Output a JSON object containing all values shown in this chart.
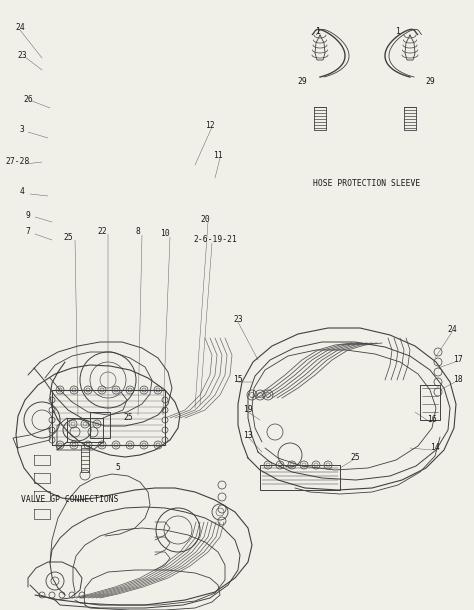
{
  "bg_color": "#f0efe8",
  "line_color": "#404040",
  "text_color": "#1a1a1a",
  "labels": {
    "hose_protection": "HOSE PROTECTION SLEEVE",
    "valve_gp": "VALVE GP CONNECTIONS"
  },
  "font_size_label": 5.8,
  "font_size_number": 5.8,
  "main_callouts": [
    [
      20,
      28,
      "24"
    ],
    [
      22,
      55,
      "23"
    ],
    [
      28,
      100,
      "26"
    ],
    [
      22,
      130,
      "3"
    ],
    [
      18,
      162,
      "27-28"
    ],
    [
      22,
      192,
      "4"
    ],
    [
      28,
      215,
      "9"
    ],
    [
      28,
      232,
      "7"
    ],
    [
      68,
      238,
      "25"
    ],
    [
      102,
      232,
      "22"
    ],
    [
      138,
      232,
      "8"
    ],
    [
      165,
      234,
      "10"
    ],
    [
      215,
      240,
      "2-6-19-21"
    ],
    [
      205,
      220,
      "20"
    ],
    [
      210,
      125,
      "12"
    ],
    [
      218,
      155,
      "11"
    ]
  ],
  "br_callouts": [
    [
      238,
      320,
      "23"
    ],
    [
      452,
      330,
      "24"
    ],
    [
      458,
      360,
      "17"
    ],
    [
      458,
      380,
      "18"
    ],
    [
      432,
      420,
      "16"
    ],
    [
      435,
      448,
      "14"
    ],
    [
      355,
      458,
      "25"
    ],
    [
      248,
      435,
      "13"
    ],
    [
      248,
      410,
      "19"
    ],
    [
      238,
      380,
      "15"
    ]
  ],
  "sleeve_callouts": [
    [
      318,
      32,
      "1"
    ],
    [
      302,
      82,
      "29"
    ],
    [
      398,
      32,
      "1"
    ],
    [
      430,
      82,
      "29"
    ]
  ],
  "valve_callouts": [
    [
      128,
      418,
      "25"
    ],
    [
      118,
      468,
      "5"
    ]
  ]
}
